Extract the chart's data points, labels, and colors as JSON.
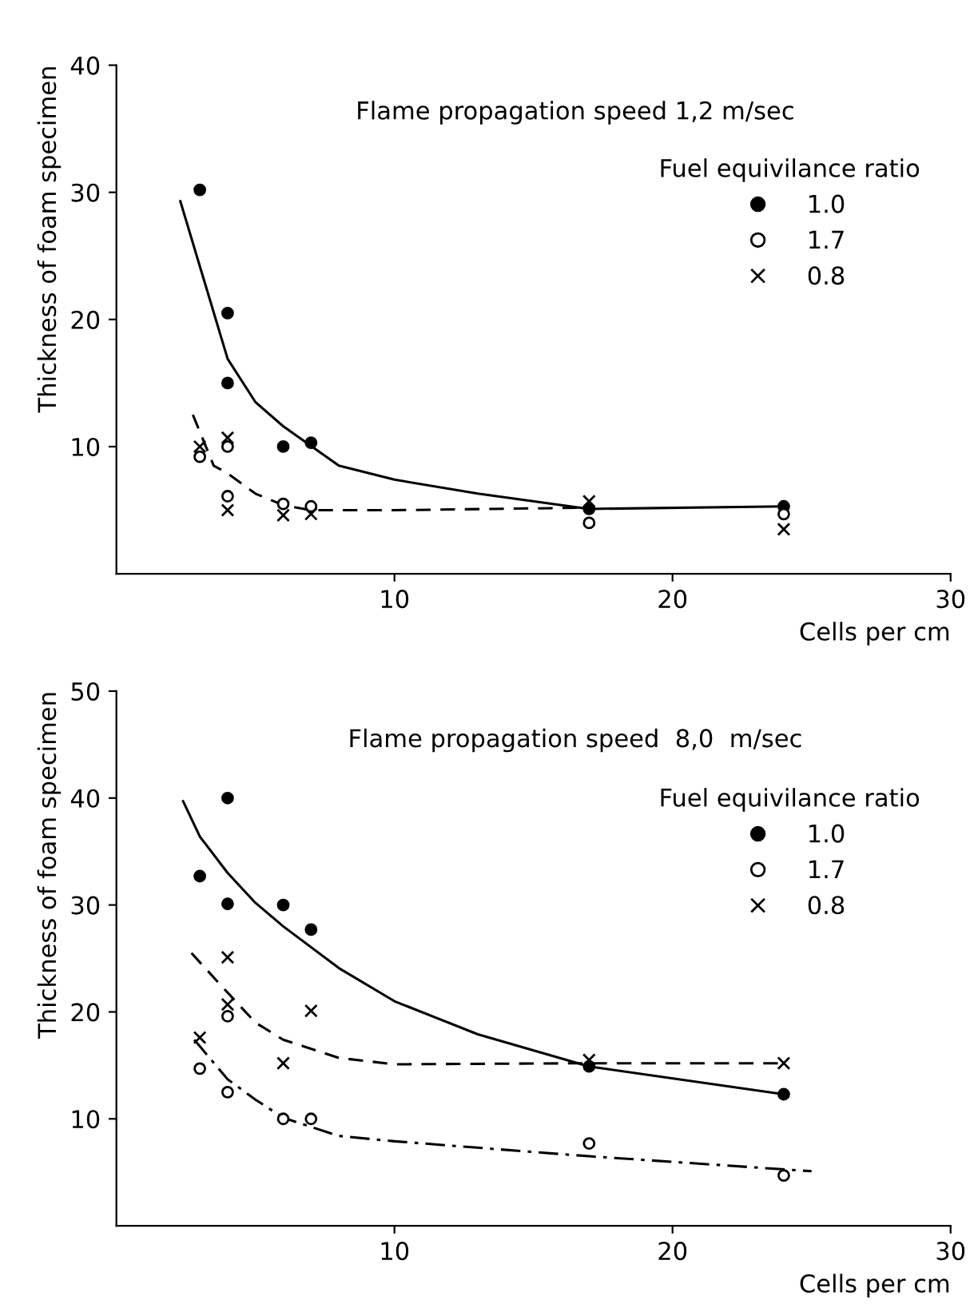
{
  "chart_data": [
    {
      "type": "scatter",
      "title": "Flame propagation speed 1,2 m/sec",
      "xlabel": "Cells per cm",
      "ylabel": "Thickness of foam specimen",
      "legend_title": "Fuel equivilance ratio",
      "legend": "top right",
      "grid": false,
      "xlim": [
        0,
        30
      ],
      "ylim": [
        0,
        40
      ],
      "xticks": [
        10,
        20,
        30
      ],
      "yticks": [
        10,
        20,
        30,
        40
      ],
      "series": [
        {
          "name": "1.0",
          "color": "#000000",
          "marker": "circle",
          "x": [
            3,
            4,
            4,
            6,
            7,
            17,
            24
          ],
          "values": [
            30.2,
            20.5,
            15,
            10,
            10.3,
            5.1,
            5.3
          ]
        },
        {
          "name": "1.7",
          "color": "#000000",
          "marker": "circle_open",
          "x": [
            3,
            4,
            4,
            6,
            7,
            17,
            24
          ],
          "values": [
            9.2,
            10,
            6.1,
            5.5,
            5.3,
            4,
            4.7
          ]
        },
        {
          "name": "0.8",
          "color": "#000000",
          "marker": "cross",
          "x": [
            3,
            4,
            4,
            6,
            7,
            17,
            24
          ],
          "values": [
            10,
            10.7,
            5,
            4.6,
            4.7,
            5.7,
            3.5
          ]
        },
        {
          "type": "line",
          "color": "#000000",
          "line_style": "solid",
          "marker": "none",
          "x": [
            2.3,
            4,
            5,
            6,
            8,
            10,
            13,
            17,
            24
          ],
          "values": [
            29.3,
            16.9,
            13.5,
            11.6,
            8.5,
            7.4,
            6.3,
            5.1,
            5.3
          ]
        },
        {
          "type": "line",
          "color": "#000000",
          "line_style": "dashed",
          "marker": "none",
          "x": [
            2.75,
            3.5,
            4,
            5,
            6,
            7,
            10,
            17
          ],
          "values": [
            12.5,
            8.5,
            7.9,
            6.3,
            5.4,
            5,
            5,
            5.2
          ]
        }
      ]
    },
    {
      "type": "scatter",
      "title": "Flame propagation speed  8,0  m/sec",
      "xlabel": "Cells per cm",
      "ylabel": "Thickness of foam specimen",
      "legend_title": "Fuel equivilance ratio",
      "legend": "top right",
      "grid": false,
      "xlim": [
        0,
        30
      ],
      "ylim": [
        0,
        50
      ],
      "xticks": [
        10,
        20,
        30
      ],
      "yticks": [
        10,
        20,
        30,
        40,
        50
      ],
      "series": [
        {
          "name": "1.0",
          "color": "#000000",
          "marker": "circle",
          "x": [
            3,
            4,
            4,
            6,
            7,
            17,
            24
          ],
          "values": [
            32.7,
            40,
            30.1,
            30,
            27.7,
            14.9,
            12.3
          ]
        },
        {
          "name": "1.7",
          "color": "#000000",
          "marker": "circle_open",
          "x": [
            3,
            4,
            4,
            6,
            7,
            17,
            24
          ],
          "values": [
            14.7,
            19.6,
            12.5,
            10,
            10,
            7.7,
            4.7
          ]
        },
        {
          "name": "0.8",
          "color": "#000000",
          "marker": "cross",
          "x": [
            3,
            4,
            4,
            6,
            7,
            17,
            24
          ],
          "values": [
            17.6,
            25.1,
            20.7,
            15.2,
            20.1,
            15.5,
            15.2
          ]
        },
        {
          "type": "line",
          "color": "#000000",
          "line_style": "solid",
          "marker": "none",
          "x": [
            2.4,
            3,
            4,
            5,
            6,
            8,
            10,
            13,
            17,
            24
          ],
          "values": [
            39.7,
            36.4,
            33,
            30.2,
            28,
            24.1,
            21,
            17.9,
            14.9,
            12.3
          ]
        },
        {
          "type": "line",
          "color": "#000000",
          "line_style": "dashed",
          "marker": "none",
          "x": [
            2.7,
            4,
            5,
            6,
            8,
            10,
            17,
            24
          ],
          "values": [
            25.5,
            21.8,
            19,
            17.4,
            15.7,
            15.1,
            15.2,
            15.2
          ]
        },
        {
          "type": "line",
          "color": "#000000",
          "line_style": "dashdot",
          "marker": "none",
          "x": [
            2.8,
            4,
            5,
            6,
            8,
            10,
            17,
            25
          ],
          "values": [
            17.4,
            13.7,
            11.8,
            10.1,
            8.4,
            7.9,
            6.5,
            5.1
          ]
        }
      ]
    }
  ]
}
